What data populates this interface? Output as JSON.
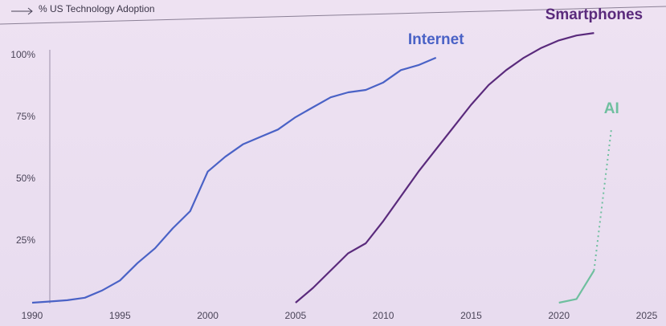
{
  "chart_data": {
    "type": "line",
    "title": "% US Technology Adoption",
    "x": [
      1990,
      1991,
      1992,
      1993,
      1994,
      1995,
      1996,
      1997,
      1998,
      1999,
      2000,
      2001,
      2002,
      2003,
      2004,
      2005,
      2006,
      2007,
      2008,
      2009,
      2010,
      2011,
      2012,
      2013,
      2014,
      2015,
      2016,
      2017,
      2018,
      2019,
      2020,
      2021,
      2022,
      2023
    ],
    "series": [
      {
        "name": "Internet",
        "color": "#4a62c6",
        "values": [
          0,
          0.5,
          1,
          2,
          5,
          9,
          16,
          22,
          30,
          37,
          53,
          59,
          64,
          67,
          70,
          75,
          79,
          83,
          85,
          86,
          89,
          94,
          96,
          99,
          null,
          null,
          null,
          null,
          null,
          null,
          null,
          null,
          null,
          null
        ]
      },
      {
        "name": "Smartphones",
        "color": "#5a2a7c",
        "values": [
          null,
          null,
          null,
          null,
          null,
          null,
          null,
          null,
          null,
          null,
          null,
          null,
          null,
          null,
          null,
          0,
          6,
          13,
          20,
          24,
          33,
          43,
          53,
          62,
          71,
          80,
          88,
          94,
          99,
          103,
          106,
          108,
          109,
          null
        ]
      },
      {
        "name": "AI",
        "color": "#6fbf9f",
        "values": [
          null,
          null,
          null,
          null,
          null,
          null,
          null,
          null,
          null,
          null,
          null,
          null,
          null,
          null,
          null,
          null,
          null,
          null,
          null,
          null,
          null,
          null,
          null,
          null,
          null,
          null,
          null,
          null,
          null,
          null,
          0,
          1.5,
          13,
          null
        ],
        "projection": [
          null,
          null,
          null,
          null,
          null,
          null,
          null,
          null,
          null,
          null,
          null,
          null,
          null,
          null,
          null,
          null,
          null,
          null,
          null,
          null,
          null,
          null,
          null,
          null,
          null,
          null,
          null,
          null,
          null,
          null,
          null,
          null,
          13,
          71
        ]
      }
    ],
    "xlim": [
      1990,
      2025
    ],
    "xticks": [
      1990,
      1995,
      2000,
      2005,
      2010,
      2015,
      2020,
      2025
    ],
    "ylim": [
      0,
      110
    ],
    "yticks": [
      {
        "value": 25,
        "label": "25%"
      },
      {
        "value": 50,
        "label": "50%"
      },
      {
        "value": 75,
        "label": "75%"
      },
      {
        "value": 100,
        "label": "100%"
      }
    ]
  }
}
